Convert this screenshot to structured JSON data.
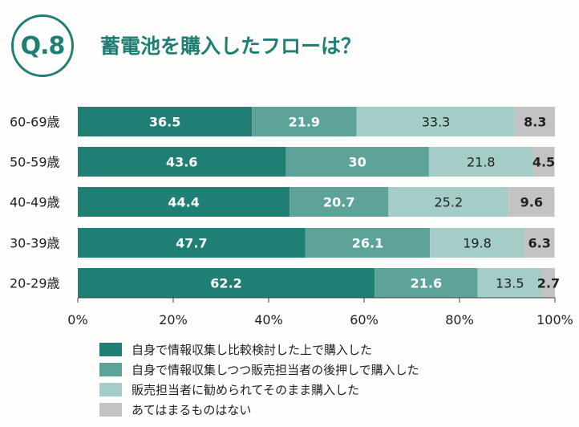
{
  "header": {
    "badge": "Q.8",
    "title": "蓄電池を購入したフローは？"
  },
  "colors": [
    "#1f7f75",
    "#5ea39a",
    "#a4cdc7",
    "#c3c3c3"
  ],
  "chart_data": {
    "type": "bar",
    "orientation": "horizontal",
    "stacked": true,
    "categories": [
      "60-69歳",
      "50-59歳",
      "40-49歳",
      "30-39歳",
      "20-29歳"
    ],
    "series": [
      {
        "name": "自身で情報収集し比較検討した上で購入した",
        "values": [
          36.5,
          43.6,
          44.4,
          47.7,
          62.2
        ]
      },
      {
        "name": "自身で情報収集しつつ販売担当者の後押しで購入した",
        "values": [
          21.9,
          30,
          20.7,
          26.1,
          21.6
        ]
      },
      {
        "name": "販売担当者に勧められてそのまま購入した",
        "values": [
          33.3,
          21.8,
          25.2,
          19.8,
          13.5
        ]
      },
      {
        "name": "あてはまるものはない",
        "values": [
          8.3,
          4.5,
          9.6,
          6.3,
          2.7
        ]
      }
    ],
    "xlim": [
      0,
      100
    ],
    "xticks": [
      "0%",
      "20%",
      "40%",
      "60%",
      "80%",
      "100%"
    ],
    "legend_position": "bottom"
  }
}
